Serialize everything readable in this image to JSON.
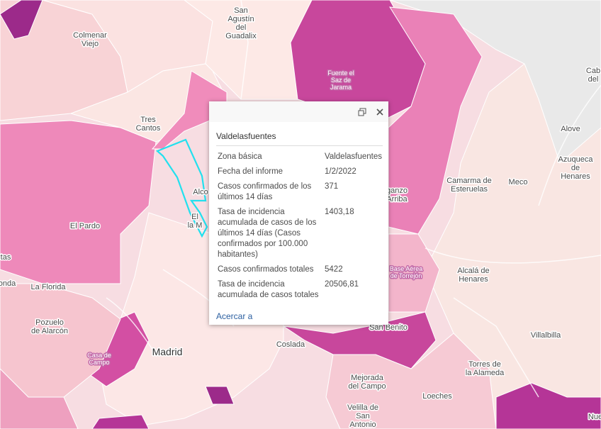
{
  "map": {
    "labels": [
      {
        "lines": [
          "San",
          "Agustín",
          "del",
          "Guadalix"
        ]
      },
      {
        "lines": [
          "Colmenar",
          "Viejo"
        ]
      },
      {
        "lines": [
          "Fuente el",
          "Saz de",
          "Jarama"
        ]
      },
      {
        "lines": [
          "Tres",
          "Cantos"
        ]
      },
      {
        "lines": [
          "El Pardo"
        ]
      },
      {
        "lines": [
          "Camarma de",
          "Esteruelas"
        ]
      },
      {
        "lines": [
          "Meco"
        ]
      },
      {
        "lines": [
          "Alove"
        ]
      },
      {
        "lines": [
          "Azuqueca",
          "de",
          "Henares"
        ]
      },
      {
        "lines": [
          "Cab",
          "del"
        ]
      },
      {
        "lines": [
          "Alcalá de",
          "Henares"
        ]
      },
      {
        "lines": [
          "La Florida"
        ]
      },
      {
        "lines": [
          "Pozuelo",
          "de Alarcón"
        ]
      },
      {
        "lines": [
          "Madrid"
        ]
      },
      {
        "lines": [
          "Casa de",
          "Campo"
        ]
      },
      {
        "lines": [
          "Coslada"
        ]
      },
      {
        "lines": [
          "San Benito"
        ]
      },
      {
        "lines": [
          "Villalbilla"
        ]
      },
      {
        "lines": [
          "Torres de",
          "la Alameda"
        ]
      },
      {
        "lines": [
          "Mejorada",
          "del Campo"
        ]
      },
      {
        "lines": [
          "Loeches"
        ]
      },
      {
        "lines": [
          "Velilla de",
          "San",
          "Antonio"
        ]
      },
      {
        "lines": [
          "Base Aérea",
          "de Torrejón"
        ]
      },
      {
        "lines": [
          "tas"
        ]
      },
      {
        "lines": [
          "onda"
        ]
      },
      {
        "lines": [
          "Alco"
        ]
      },
      {
        "lines": [
          "El",
          "la M"
        ]
      },
      {
        "lines": [
          "ganzo",
          "Arriba"
        ]
      },
      {
        "lines": [
          "Nue"
        ]
      }
    ]
  },
  "popup": {
    "title": "Valdelasfuentes",
    "rows": [
      [
        "Zona básica",
        "Valdelasfuentes"
      ],
      [
        "Fecha del informe",
        "1/2/2022"
      ],
      [
        "Casos confirmados de los últimos 14 días",
        "371"
      ],
      [
        "Tasa de incidencia acumulada de casos de los últimos 14 días (Casos confirmados por 100.000 habitantes)",
        "1403,18"
      ],
      [
        "Casos confirmados totales",
        "5422"
      ],
      [
        "Tasa de incidencia acumulada de casos totales",
        "20506,81"
      ]
    ],
    "action": "Acercar a"
  }
}
